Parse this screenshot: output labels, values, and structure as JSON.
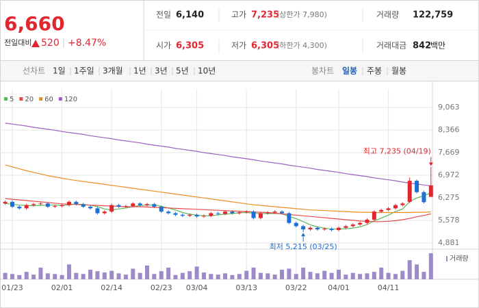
{
  "quote": {
    "price": "6,660",
    "change_label": "전일대비",
    "change": "520",
    "change_pct": "+8.47%"
  },
  "summary": [
    {
      "label": "전일",
      "value": "6,140"
    },
    {
      "label": "고가",
      "value": "7,235",
      "extra": "(상한가 7,980)"
    },
    {
      "label": "거래량",
      "value": "122,759"
    },
    {
      "label": "시가",
      "value": "6,305"
    },
    {
      "label": "저가",
      "value": "6,305",
      "extra": "(하한가 4,300)"
    },
    {
      "label": "거래대금",
      "value": "842",
      "unit": "백만"
    }
  ],
  "toolbar": {
    "line_label": "선차트",
    "line_options": [
      "1일",
      "1주일",
      "3개월",
      "1년",
      "3년",
      "5년",
      "10년"
    ],
    "candle_label": "봉차트",
    "candle_options": [
      "일봉",
      "주봉",
      "월봉"
    ],
    "active_option": "일봉"
  },
  "chart_data": {
    "type": "candlestick",
    "categories": [
      null,
      "01/23",
      null,
      null,
      null,
      null,
      null,
      null,
      "02/01",
      null,
      null,
      null,
      null,
      null,
      null,
      "02/14",
      null,
      null,
      null,
      null,
      null,
      null,
      "02/23",
      null,
      null,
      null,
      null,
      "03/04",
      null,
      null,
      null,
      null,
      null,
      null,
      "03/13",
      null,
      null,
      null,
      null,
      null,
      null,
      "03/22",
      null,
      null,
      null,
      null,
      null,
      "04/01",
      null,
      null,
      null,
      null,
      null,
      null,
      "04/11",
      null,
      null,
      null,
      null,
      null,
      null
    ],
    "open": [
      6100,
      6150,
      6000,
      5950,
      6050,
      6080,
      6100,
      6000,
      6020,
      6050,
      6150,
      6080,
      6000,
      5950,
      5800,
      5850,
      6050,
      6000,
      6020,
      6100,
      6050,
      6080,
      6000,
      5850,
      5800,
      5750,
      5720,
      5750,
      5700,
      5720,
      5800,
      5780,
      5850,
      5800,
      5830,
      5850,
      5650,
      5800,
      5820,
      5850,
      5800,
      5500,
      5400,
      5300,
      5350,
      5300,
      5320,
      5280,
      5350,
      5400,
      5450,
      5500,
      5600,
      5850,
      5900,
      5950,
      6050,
      6150,
      6800,
      6450,
      6305
    ],
    "high": [
      6190,
      6190,
      6040,
      6090,
      6120,
      6140,
      6140,
      6060,
      6090,
      6190,
      6190,
      6120,
      6040,
      5990,
      5890,
      6090,
      6090,
      6060,
      6140,
      6140,
      6120,
      6120,
      6040,
      5890,
      5840,
      5790,
      5790,
      5790,
      5760,
      5840,
      5840,
      5890,
      5890,
      5870,
      5890,
      5890,
      5840,
      5860,
      5890,
      5890,
      5840,
      5540,
      5440,
      5390,
      5390,
      5360,
      5360,
      5390,
      5440,
      5490,
      5540,
      5640,
      5890,
      5940,
      5990,
      6090,
      6140,
      6900,
      6840,
      6490,
      7235
    ],
    "low": [
      6060,
      5960,
      5910,
      5910,
      6010,
      6040,
      5960,
      5960,
      5980,
      6010,
      6040,
      5960,
      5910,
      5760,
      5760,
      5810,
      5960,
      5960,
      5980,
      6010,
      6010,
      5960,
      5810,
      5760,
      5710,
      5680,
      5680,
      5660,
      5660,
      5680,
      5740,
      5740,
      5760,
      5760,
      5790,
      5610,
      5610,
      5760,
      5780,
      5760,
      5460,
      5360,
      5215,
      5260,
      5260,
      5260,
      5240,
      5240,
      5310,
      5360,
      5410,
      5460,
      5560,
      5810,
      5860,
      5910,
      6010,
      6110,
      6410,
      6100,
      6305
    ],
    "close": [
      6150,
      6000,
      5950,
      6050,
      6080,
      6100,
      6000,
      6020,
      6050,
      6150,
      6080,
      6000,
      5950,
      5800,
      5850,
      6050,
      6000,
      6020,
      6100,
      6050,
      6080,
      6000,
      5850,
      5800,
      5750,
      5720,
      5750,
      5700,
      5720,
      5800,
      5780,
      5850,
      5800,
      5830,
      5850,
      5650,
      5800,
      5820,
      5850,
      5800,
      5500,
      5400,
      5300,
      5350,
      5300,
      5320,
      5280,
      5350,
      5400,
      5450,
      5500,
      5600,
      5850,
      5900,
      5950,
      6050,
      6100,
      6800,
      6450,
      6140,
      6660
    ],
    "up_color": "#e0262f",
    "down_color": "#1f6ed4",
    "moving_averages": [
      {
        "name": "5",
        "color": "#5cb85c",
        "values": [
          6100,
          6080,
          6050,
          6040,
          6030,
          6040,
          6050,
          6050,
          6040,
          6060,
          6080,
          6070,
          6050,
          6000,
          5930,
          5900,
          5930,
          5960,
          6000,
          6040,
          6050,
          6060,
          6010,
          5960,
          5900,
          5820,
          5770,
          5740,
          5720,
          5720,
          5750,
          5770,
          5790,
          5810,
          5820,
          5800,
          5790,
          5790,
          5790,
          5780,
          5700,
          5630,
          5540,
          5440,
          5380,
          5340,
          5310,
          5310,
          5320,
          5340,
          5380,
          5450,
          5560,
          5650,
          5740,
          5850,
          5930,
          6160,
          6270,
          6340,
          6430
        ]
      },
      {
        "name": "20",
        "color": "#e84a4a",
        "values": [
          6250,
          6230,
          6210,
          6190,
          6170,
          6150,
          6130,
          6110,
          6090,
          6080,
          6070,
          6060,
          6050,
          6040,
          6030,
          6020,
          6010,
          6000,
          6000,
          6000,
          5990,
          5980,
          5970,
          5960,
          5950,
          5940,
          5930,
          5920,
          5910,
          5900,
          5890,
          5880,
          5870,
          5860,
          5850,
          5840,
          5830,
          5820,
          5800,
          5780,
          5760,
          5740,
          5720,
          5700,
          5680,
          5660,
          5640,
          5620,
          5600,
          5580,
          5560,
          5550,
          5540,
          5540,
          5550,
          5570,
          5600,
          5640,
          5690,
          5730,
          5780
        ]
      },
      {
        "name": "60",
        "color": "#f08c1f",
        "values": [
          7290,
          7230,
          7170,
          7110,
          7060,
          7010,
          6960,
          6920,
          6880,
          6840,
          6810,
          6780,
          6750,
          6720,
          6690,
          6660,
          6630,
          6600,
          6570,
          6540,
          6510,
          6480,
          6450,
          6420,
          6390,
          6360,
          6330,
          6300,
          6270,
          6240,
          6210,
          6180,
          6150,
          6120,
          6090,
          6060,
          6040,
          6020,
          6000,
          5980,
          5960,
          5940,
          5920,
          5900,
          5890,
          5880,
          5870,
          5860,
          5850,
          5840,
          5830,
          5830,
          5820,
          5820,
          5820,
          5820,
          5820,
          5820,
          5830,
          5830,
          5840
        ]
      },
      {
        "name": "120",
        "color": "#9d5fc4",
        "values": [
          8580,
          8550,
          8520,
          8490,
          8450,
          8420,
          8390,
          8360,
          8320,
          8290,
          8260,
          8230,
          8190,
          8160,
          8130,
          8100,
          8060,
          8030,
          8000,
          7970,
          7930,
          7900,
          7870,
          7840,
          7800,
          7770,
          7740,
          7710,
          7670,
          7640,
          7610,
          7580,
          7540,
          7510,
          7480,
          7450,
          7410,
          7380,
          7350,
          7320,
          7280,
          7250,
          7220,
          7190,
          7150,
          7120,
          7090,
          7060,
          7020,
          6990,
          6960,
          6930,
          6890,
          6860,
          6830,
          6800,
          6760,
          6730,
          6700,
          6670,
          6640
        ]
      }
    ],
    "volume": {
      "name": "거래량",
      "color": "#9c8bc8",
      "values": [
        30000,
        25000,
        20000,
        35000,
        22000,
        55000,
        28000,
        25000,
        20000,
        70000,
        30000,
        25000,
        45000,
        38000,
        32000,
        40000,
        28000,
        22000,
        50000,
        30000,
        65000,
        25000,
        38000,
        55000,
        20000,
        30000,
        38000,
        60000,
        32000,
        25000,
        22000,
        28000,
        20000,
        25000,
        40000,
        55000,
        30000,
        28000,
        22000,
        45000,
        50000,
        25000,
        55000,
        35000,
        28000,
        40000,
        30000,
        45000,
        22000,
        30000,
        25000,
        28000,
        35000,
        55000,
        30000,
        25000,
        40000,
        90000,
        70000,
        35000,
        122759
      ]
    },
    "ylim": [
      4881,
      9063
    ],
    "yticks": [
      {
        "value": 4881,
        "label": "4,881"
      },
      {
        "value": 5578,
        "label": "5,578"
      },
      {
        "value": 6275,
        "label": "6,275"
      },
      {
        "value": 6972,
        "label": "6,972"
      },
      {
        "value": 7669,
        "label": "7,669"
      },
      {
        "value": 8366,
        "label": "8,366"
      },
      {
        "value": 9063,
        "label": "9,063"
      }
    ],
    "grid": true,
    "annotations": [
      {
        "text": "최고 7,235 (04/19)",
        "color": "#e0262f"
      },
      {
        "text": "최저 5,215 (03/25)",
        "color": "#1f6ed4"
      }
    ]
  }
}
